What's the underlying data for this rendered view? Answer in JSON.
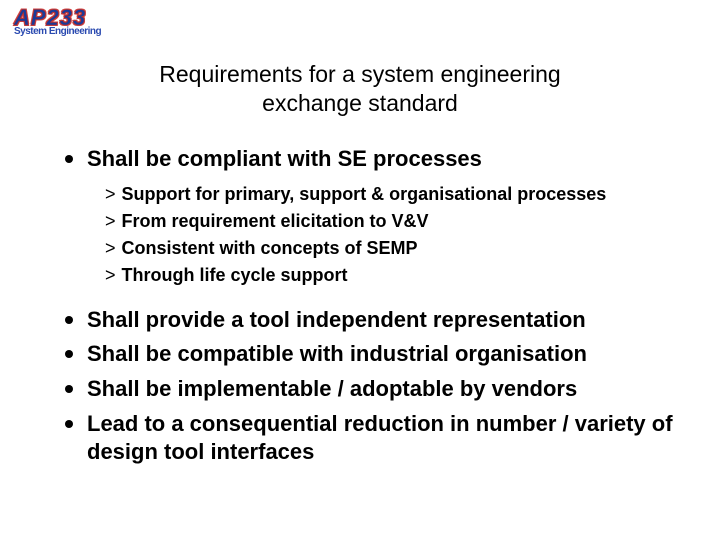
{
  "logo": {
    "top": "AP233",
    "sub": "System Engineering"
  },
  "title_line1": "Requirements for a system engineering",
  "title_line2": "exchange standard",
  "items": [
    {
      "text": "Shall be compliant with SE processes",
      "subs": [
        "Support for primary, support & organisational processes",
        "From requirement elicitation to V&V",
        "Consistent with concepts of SEMP",
        "Through life cycle support"
      ]
    },
    {
      "text": "Shall provide a tool independent representation"
    },
    {
      "text": "Shall be compatible with industrial organisation"
    },
    {
      "text": "Shall be implementable / adoptable by vendors"
    },
    {
      "text": "Lead to a consequential reduction in number / variety of design tool interfaces"
    }
  ],
  "colors": {
    "background": "#ffffff",
    "text": "#000000",
    "logo_fill": "#1a3a9a",
    "logo_outline": "#d04040"
  },
  "fonts": {
    "title_size": 23,
    "main_size": 22,
    "sub_size": 18
  }
}
